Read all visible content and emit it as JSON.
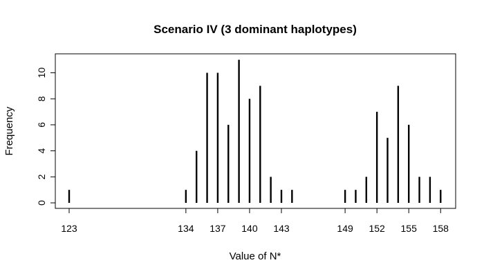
{
  "chart_data": {
    "type": "bar",
    "title": "Scenario IV (3 dominant haplotypes)",
    "xlabel": "Value of N*",
    "ylabel": "Frequency",
    "xlim": [
      122,
      159
    ],
    "ylim": [
      0,
      11
    ],
    "x_ticks": [
      "123",
      "134",
      "137",
      "140",
      "143",
      "149",
      "152",
      "155",
      "158"
    ],
    "y_ticks": [
      "0",
      "2",
      "4",
      "6",
      "8",
      "10"
    ],
    "x": [
      123,
      134,
      135,
      136,
      137,
      138,
      139,
      140,
      141,
      142,
      143,
      144,
      149,
      150,
      151,
      152,
      153,
      154,
      155,
      156,
      157,
      158
    ],
    "values": [
      1,
      1,
      4,
      10,
      10,
      6,
      11,
      8,
      9,
      2,
      1,
      1,
      1,
      1,
      2,
      7,
      5,
      9,
      6,
      2,
      2,
      1
    ],
    "grid": false,
    "legend": "none"
  }
}
